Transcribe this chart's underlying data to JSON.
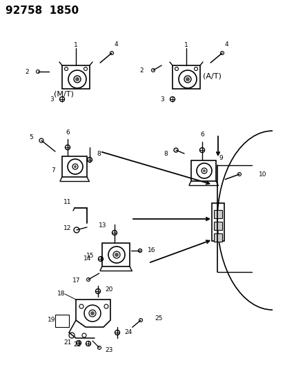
{
  "title": "92758  1850",
  "bg": "#ffffff",
  "fg": "#000000",
  "fig_w": 4.14,
  "fig_h": 5.33,
  "dpi": 100,
  "MT_label": "(M/T)",
  "AT_label": "(A/T)"
}
